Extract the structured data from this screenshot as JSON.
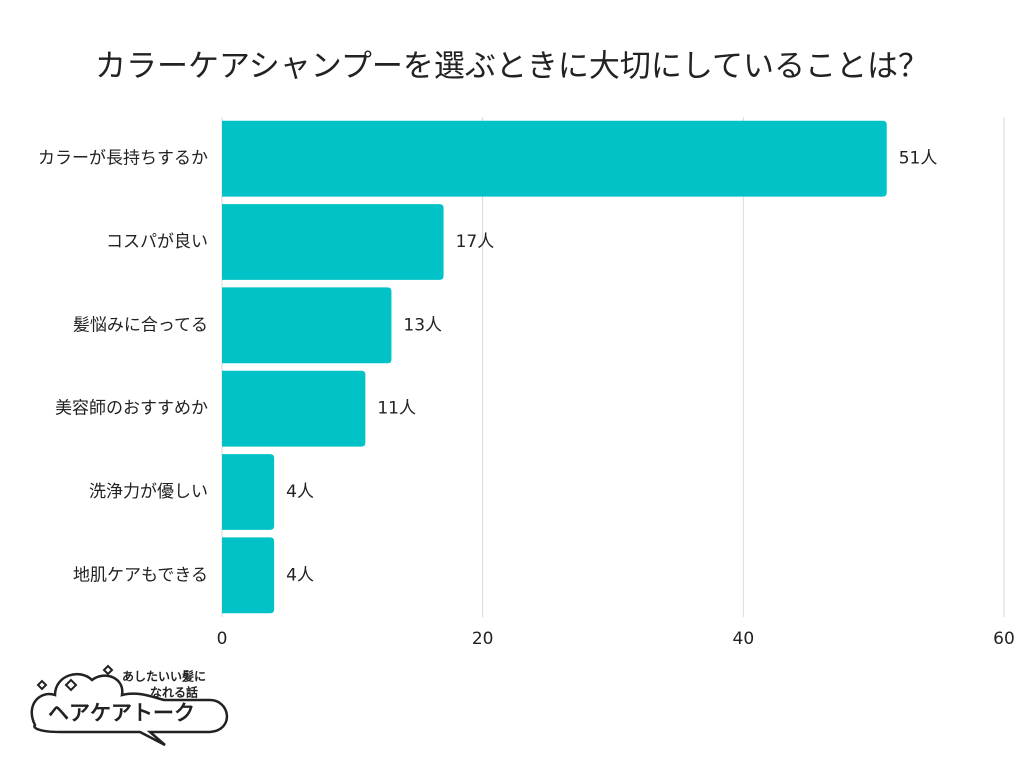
{
  "chart_data": {
    "type": "barh",
    "title": "カラーケアシャンプーを選ぶときに大切にしていることは？",
    "categories": [
      "カラーが長持ちするか",
      "コスパが良い",
      "髪悩みに合ってる",
      "美容師のおすすめか",
      "洗浄力が優しい",
      "地肌ケアもできる"
    ],
    "values": [
      51,
      17,
      13,
      11,
      4,
      4
    ],
    "value_labels": [
      "51人",
      "17人",
      "13人",
      "11人",
      "4人",
      "4人"
    ],
    "color": "#00c2c7",
    "xlim": [
      0,
      60
    ],
    "xticks": [
      0,
      20,
      40,
      60
    ],
    "grid": true
  },
  "logo": {
    "tagline": [
      "あしたいい髪に",
      "なれる話"
    ],
    "name": "ヘアケアトーク"
  }
}
